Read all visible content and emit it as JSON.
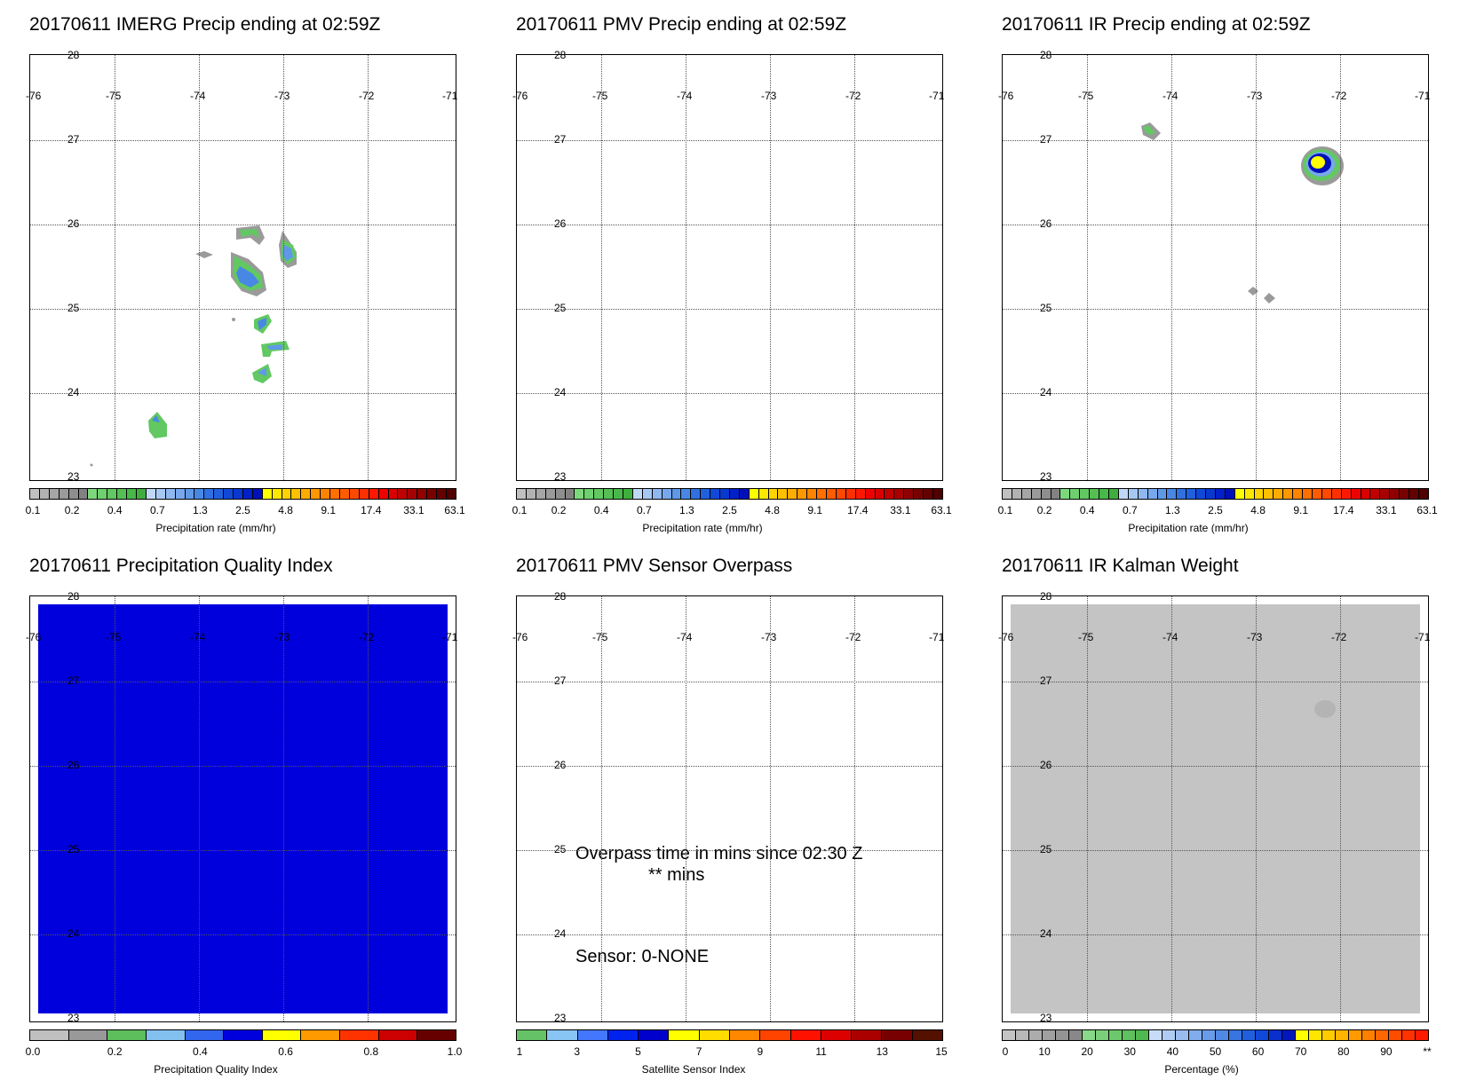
{
  "panels": [
    {
      "title": "20170611 IMERG Precip ending at 02:59Z",
      "cbar_label": "Precipitation rate (mm/hr)"
    },
    {
      "title": "20170611 PMV Precip ending at 02:59Z",
      "cbar_label": "Precipitation rate (mm/hr)"
    },
    {
      "title": "20170611 IR Precip ending at 02:59Z",
      "cbar_label": "Precipitation rate (mm/hr)"
    },
    {
      "title": "20170611 Precipitation Quality Index",
      "cbar_label": "Precipitation Quality Index"
    },
    {
      "title": "20170611 PMV Sensor Overpass",
      "cbar_label": "Satellite Sensor Index"
    },
    {
      "title": "20170611 IR Kalman Weight",
      "cbar_label": "Percentage (%)"
    }
  ],
  "map": {
    "lon_labels": [
      "-76",
      "-75",
      "-74",
      "-73",
      "-72",
      "-71"
    ],
    "lat_labels": [
      "28",
      "27",
      "26",
      "25",
      "24",
      "23"
    ]
  },
  "overpass": {
    "line1": "Overpass time in mins since 02:30 Z",
    "line2": "** mins",
    "sensor": "Sensor:   0-NONE"
  },
  "colorbars": {
    "precip": {
      "ticks": [
        "0.1",
        "0.2",
        "0.4",
        "0.7",
        "1.3",
        "2.5",
        "4.8",
        "9.1",
        "17.4",
        "33.1",
        "63.1"
      ],
      "colors": [
        "#c0c0c0",
        "#b2b2b2",
        "#a6a6a6",
        "#9a9a9a",
        "#8e8e8e",
        "#828282",
        "#7dd87d",
        "#6fd06f",
        "#62c862",
        "#55bf55",
        "#48b848",
        "#3fae3f",
        "#c0d8f8",
        "#a8c8f4",
        "#90b8f0",
        "#78a8ec",
        "#6098e8",
        "#4888e4",
        "#3070e0",
        "#2060dc",
        "#1048d8",
        "#0838d0",
        "#0020c8",
        "#0010b8",
        "#ffff00",
        "#ffe800",
        "#ffd400",
        "#ffc000",
        "#ffac00",
        "#ff9800",
        "#ff8400",
        "#ff7000",
        "#ff5c00",
        "#ff4800",
        "#ff3000",
        "#ff1800",
        "#ee0000",
        "#d80000",
        "#c00000",
        "#a80000",
        "#900000",
        "#780000",
        "#640000",
        "#500000"
      ]
    },
    "pqi": {
      "ticks": [
        "0.0",
        "0.2",
        "0.4",
        "0.6",
        "0.8",
        "1.0"
      ],
      "colors": [
        "#c0c0c0",
        "#999999",
        "#5cbf5c",
        "#82c0f0",
        "#3366ee",
        "#0000dd",
        "#ffff00",
        "#ff9900",
        "#ff3300",
        "#cc0000",
        "#660000"
      ]
    },
    "sensor": {
      "ticks": [
        "1",
        "3",
        "5",
        "7",
        "9",
        "11",
        "13",
        "15"
      ],
      "colors": [
        "#66c266",
        "#88c4f4",
        "#4477ff",
        "#0022ee",
        "#0000cc",
        "#ffff00",
        "#ffdd00",
        "#ff8800",
        "#ff4400",
        "#ff1100",
        "#dd0000",
        "#aa0000",
        "#770000",
        "#551100"
      ]
    },
    "kalman": {
      "ticks": [
        "0",
        "10",
        "20",
        "30",
        "40",
        "50",
        "60",
        "70",
        "80",
        "90",
        "**"
      ],
      "colors": [
        "#c4c4c4",
        "#b8b8b8",
        "#acacac",
        "#a0a0a0",
        "#949494",
        "#888888",
        "#88d888",
        "#7ad07a",
        "#6cc86c",
        "#5ec05e",
        "#50b850",
        "#c8dcf8",
        "#b0ccf4",
        "#98bcf0",
        "#80acec",
        "#689ce8",
        "#5088e4",
        "#3874e0",
        "#2060dc",
        "#1048d8",
        "#0830cc",
        "#0018bc",
        "#ffff00",
        "#ffe600",
        "#ffcc00",
        "#ffb300",
        "#ff9900",
        "#ff8000",
        "#ff6600",
        "#ff4d00",
        "#ff3300",
        "#ff1a00"
      ]
    }
  }
}
